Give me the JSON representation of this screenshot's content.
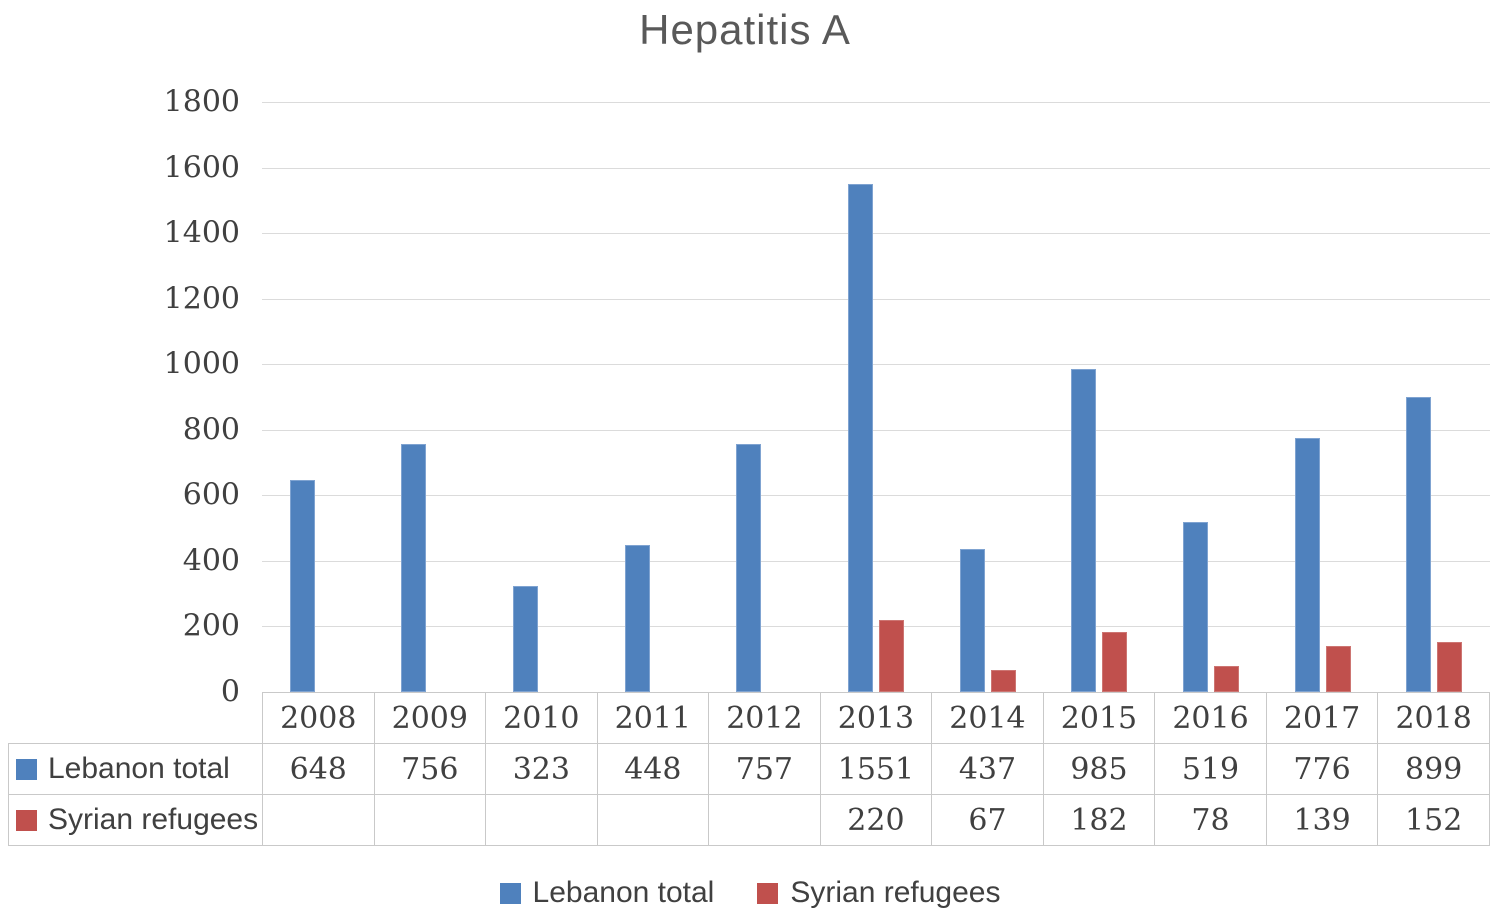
{
  "chart_data": {
    "type": "bar",
    "title": "Hepatitis A",
    "categories": [
      "2008",
      "2009",
      "2010",
      "2011",
      "2012",
      "2013",
      "2014",
      "2015",
      "2016",
      "2017",
      "2018"
    ],
    "series": [
      {
        "name": "Lebanon total",
        "color": "#4F81BD",
        "values": [
          648,
          756,
          323,
          448,
          757,
          1551,
          437,
          985,
          519,
          776,
          899
        ]
      },
      {
        "name": "Syrian refugees",
        "color": "#C0504D",
        "values": [
          null,
          null,
          null,
          null,
          null,
          220,
          67,
          182,
          78,
          139,
          152
        ]
      }
    ],
    "xlabel": "",
    "ylabel": "",
    "ylim": [
      0,
      1800
    ],
    "yticks": [
      0,
      200,
      400,
      600,
      800,
      1000,
      1200,
      1400,
      1600,
      1800
    ],
    "grid": true,
    "legend_position": "bottom",
    "data_table_shown": true
  },
  "legend": {
    "items": [
      {
        "label": "Lebanon total",
        "color": "#4F81BD"
      },
      {
        "label": "Syrian refugees",
        "color": "#C0504D"
      }
    ]
  }
}
